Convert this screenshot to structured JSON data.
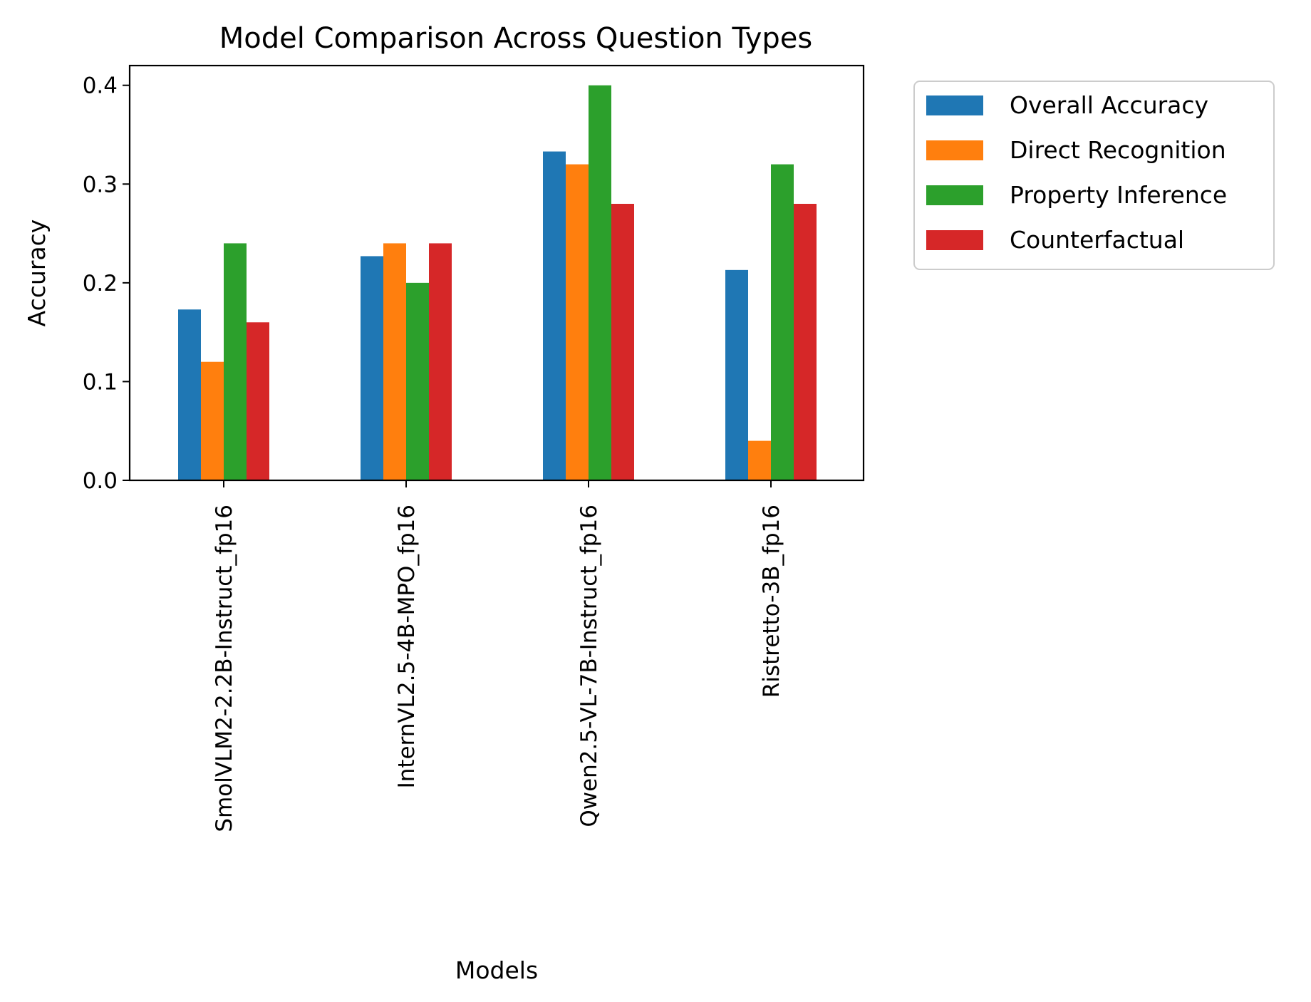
{
  "chart_data": {
    "type": "bar",
    "title": "Model Comparison Across Question Types",
    "xlabel": "Models",
    "ylabel": "Accuracy",
    "ylim": [
      0,
      0.42
    ],
    "yticks": [
      "0.0",
      "0.1",
      "0.2",
      "0.3",
      "0.4"
    ],
    "ytick_values": [
      0,
      0.1,
      0.2,
      0.3,
      0.4
    ],
    "grid": false,
    "legend_position": "outside-right-top",
    "categories": [
      "SmolVLM2-2.2B-Instruct_fp16",
      "InternVL2.5-4B-MPO_fp16",
      "Qwen2.5-VL-7B-Instruct_fp16",
      "Ristretto-3B_fp16"
    ],
    "series": [
      {
        "name": "Overall Accuracy",
        "color": "#1f77b4",
        "values": [
          0.173,
          0.227,
          0.333,
          0.213
        ]
      },
      {
        "name": "Direct Recognition",
        "color": "#ff7f0e",
        "values": [
          0.12,
          0.24,
          0.32,
          0.04
        ]
      },
      {
        "name": "Property Inference",
        "color": "#2ca02c",
        "values": [
          0.24,
          0.2,
          0.4,
          0.32
        ]
      },
      {
        "name": "Counterfactual",
        "color": "#d62728",
        "values": [
          0.16,
          0.24,
          0.28,
          0.28
        ]
      }
    ]
  }
}
